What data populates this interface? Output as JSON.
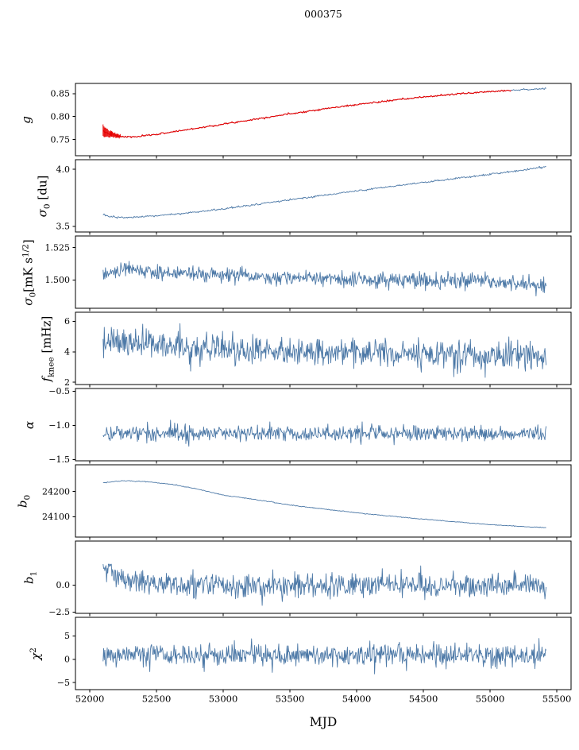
{
  "title": "000375",
  "xlabel": "MJD",
  "colors": {
    "line": "#4d79a7",
    "model": "#e60000",
    "axis": "#000000",
    "background": "#ffffff"
  },
  "x_axis": {
    "label": "MJD",
    "min": 51893,
    "max": 55607,
    "ticks": [
      52000,
      52500,
      53000,
      53500,
      54000,
      54500,
      55000,
      55500
    ],
    "tick_labels": [
      "52000",
      "52500",
      "53000",
      "53500",
      "54000",
      "54500",
      "55000",
      "55500"
    ],
    "data_start": 52100,
    "data_end": 55420
  },
  "chart_data": [
    {
      "id": "g",
      "type": "line",
      "ylabel_text": "g",
      "ylabel_segments": [
        {
          "t": "g",
          "s": "i"
        }
      ],
      "ylim": [
        0.715,
        0.872
      ],
      "yticks": [
        0.75,
        0.8,
        0.85
      ],
      "ytick_labels": [
        "0.75",
        "0.80",
        "0.85"
      ],
      "trend": [
        [
          52100,
          0.768
        ],
        [
          52140,
          0.7635
        ],
        [
          52200,
          0.758
        ],
        [
          52260,
          0.756
        ],
        [
          52350,
          0.756
        ],
        [
          52500,
          0.7615
        ],
        [
          52750,
          0.7725
        ],
        [
          53000,
          0.7835
        ],
        [
          53250,
          0.795
        ],
        [
          53500,
          0.806
        ],
        [
          53750,
          0.8165
        ],
        [
          54000,
          0.826
        ],
        [
          54250,
          0.8345
        ],
        [
          54500,
          0.8425
        ],
        [
          54750,
          0.849
        ],
        [
          55000,
          0.8545
        ],
        [
          55200,
          0.858
        ],
        [
          55420,
          0.8605
        ]
      ],
      "noise": 0.0009,
      "n": 520,
      "seed": 7,
      "overlay": {
        "x_end": 55160,
        "err_until": 52230,
        "err_max": 0.0125,
        "err_min": 0.0025,
        "err_tau": 60
      }
    },
    {
      "id": "sigma0-du",
      "type": "line",
      "ylabel_text": "σ0 [du]",
      "ylabel_segments": [
        {
          "t": "σ",
          "s": "i"
        },
        {
          "t": "0",
          "s": "sub"
        },
        {
          "t": " [du]",
          "s": "n"
        }
      ],
      "ylim": [
        3.45,
        4.085
      ],
      "yticks": [
        3.5,
        4.0
      ],
      "ytick_labels": [
        "3.5",
        "4.0"
      ],
      "trend": [
        [
          52100,
          3.601
        ],
        [
          52150,
          3.586
        ],
        [
          52250,
          3.576
        ],
        [
          52400,
          3.582
        ],
        [
          52600,
          3.603
        ],
        [
          52850,
          3.63
        ],
        [
          53100,
          3.669
        ],
        [
          53350,
          3.708
        ],
        [
          53600,
          3.748
        ],
        [
          53850,
          3.788
        ],
        [
          54100,
          3.826
        ],
        [
          54350,
          3.863
        ],
        [
          54600,
          3.899
        ],
        [
          54850,
          3.934
        ],
        [
          55100,
          3.972
        ],
        [
          55250,
          3.996
        ],
        [
          55350,
          4.013
        ],
        [
          55420,
          4.024
        ]
      ],
      "noise": 0.004,
      "n": 600,
      "seed": 13
    },
    {
      "id": "sigma0-mks",
      "type": "line",
      "ylabel_text": "σ0[mK s1/2]",
      "ylabel_segments": [
        {
          "t": "σ",
          "s": "i"
        },
        {
          "t": "0",
          "s": "sub"
        },
        {
          "t": "[mK s",
          "s": "n"
        },
        {
          "t": "1/2",
          "s": "sup"
        },
        {
          "t": "]",
          "s": "n"
        }
      ],
      "ylim": [
        1.478,
        1.534
      ],
      "yticks": [
        1.5,
        1.525
      ],
      "ytick_labels": [
        "1.500",
        "1.525"
      ],
      "trend": [
        [
          52100,
          1.5022
        ],
        [
          52180,
          1.5068
        ],
        [
          52300,
          1.5085
        ],
        [
          52450,
          1.5072
        ],
        [
          52650,
          1.5052
        ],
        [
          52950,
          1.5038
        ],
        [
          53300,
          1.5022
        ],
        [
          53700,
          1.5012
        ],
        [
          54100,
          1.5002
        ],
        [
          54500,
          1.4995
        ],
        [
          54900,
          1.4988
        ],
        [
          55150,
          1.4983
        ],
        [
          55300,
          1.4962
        ],
        [
          55420,
          1.4942
        ]
      ],
      "noise": 0.0028,
      "n": 750,
      "seed": 23,
      "clip": [
        1.4875,
        1.516
      ],
      "spike_p": 0.01,
      "spike_mult": 1.8
    },
    {
      "id": "fknee",
      "type": "line",
      "ylabel_text": "fknee [mHz]",
      "ylabel_segments": [
        {
          "t": "f",
          "s": "i"
        },
        {
          "t": "knee",
          "s": "sub"
        },
        {
          "t": " [mHz]",
          "s": "n"
        }
      ],
      "ylim": [
        1.85,
        6.6
      ],
      "yticks": [
        2,
        4,
        6
      ],
      "ytick_labels": [
        "2",
        "4",
        "6"
      ],
      "trend": [
        [
          52100,
          4.62
        ],
        [
          52400,
          4.47
        ],
        [
          52800,
          4.3
        ],
        [
          53200,
          4.16
        ],
        [
          53600,
          4.02
        ],
        [
          54000,
          3.93
        ],
        [
          54400,
          3.86
        ],
        [
          54800,
          3.8
        ],
        [
          55420,
          3.72
        ]
      ],
      "noise": 0.48,
      "n": 750,
      "seed": 31,
      "clip": [
        2.3,
        6.45
      ],
      "spike_p": 0.02,
      "spike_mult": 1.8
    },
    {
      "id": "alpha",
      "type": "line",
      "ylabel_text": "α",
      "ylabel_segments": [
        {
          "t": "α",
          "s": "i"
        }
      ],
      "ylim": [
        -1.52,
        -0.46
      ],
      "yticks": [
        -0.5,
        -1.0,
        -1.5
      ],
      "ytick_labels": [
        "−0.5",
        "−1.0",
        "−1.5"
      ],
      "trend": [
        [
          52100,
          -1.112
        ],
        [
          55420,
          -1.122
        ]
      ],
      "noise": 0.058,
      "n": 750,
      "seed": 41,
      "clip": [
        -1.38,
        -0.82
      ]
    },
    {
      "id": "b0",
      "type": "line",
      "ylabel_text": "b0",
      "ylabel_segments": [
        {
          "t": "b",
          "s": "i"
        },
        {
          "t": "0",
          "s": "sub"
        }
      ],
      "ylim": [
        24020,
        24306
      ],
      "yticks": [
        24100,
        24200
      ],
      "ytick_labels": [
        "24100",
        "24200"
      ],
      "trend": [
        [
          52120,
          24236
        ],
        [
          52250,
          24243
        ],
        [
          52400,
          24240
        ],
        [
          52600,
          24230
        ],
        [
          52800,
          24211
        ],
        [
          53000,
          24186
        ],
        [
          53250,
          24168
        ],
        [
          53500,
          24147
        ],
        [
          53750,
          24131
        ],
        [
          54000,
          24116
        ],
        [
          54250,
          24103
        ],
        [
          54500,
          24091
        ],
        [
          54750,
          24080
        ],
        [
          55000,
          24069
        ],
        [
          55200,
          24063
        ],
        [
          55420,
          24057
        ]
      ],
      "noise": 0.8,
      "n": 520,
      "seed": 47
    },
    {
      "id": "b1",
      "type": "line",
      "ylabel_text": "b1",
      "ylabel_segments": [
        {
          "t": "b",
          "s": "i"
        },
        {
          "t": "1",
          "s": "sub"
        }
      ],
      "ylim": [
        -2.62,
        4.1
      ],
      "yticks": [
        0.0,
        -2.5
      ],
      "ytick_labels": [
        "0.0",
        "−2.5"
      ],
      "trend": [
        [
          52100,
          1.4
        ],
        [
          52140,
          1.55
        ],
        [
          52200,
          0.75
        ],
        [
          52280,
          0.3
        ],
        [
          52400,
          0.08
        ],
        [
          52600,
          0.0
        ],
        [
          55420,
          0.02
        ]
      ],
      "noise": 0.55,
      "n": 750,
      "seed": 53,
      "clip": [
        -2.45,
        1.95
      ],
      "spike_p": 0.006,
      "spike_mult": 3.2
    },
    {
      "id": "chi2",
      "type": "line",
      "ylabel_text": "χ2",
      "ylabel_segments": [
        {
          "t": "χ",
          "s": "i"
        },
        {
          "t": "2",
          "s": "sup"
        }
      ],
      "ylim": [
        -6.5,
        9.0
      ],
      "yticks": [
        5,
        0,
        -5
      ],
      "ytick_labels": [
        "5",
        "0",
        "−5"
      ],
      "trend": [
        [
          52100,
          0.8
        ],
        [
          55420,
          0.85
        ]
      ],
      "noise": 1.2,
      "n": 750,
      "seed": 59,
      "clip": [
        -3.6,
        4.65
      ],
      "spike_p": 0.01,
      "spike_mult": 1.8
    }
  ]
}
